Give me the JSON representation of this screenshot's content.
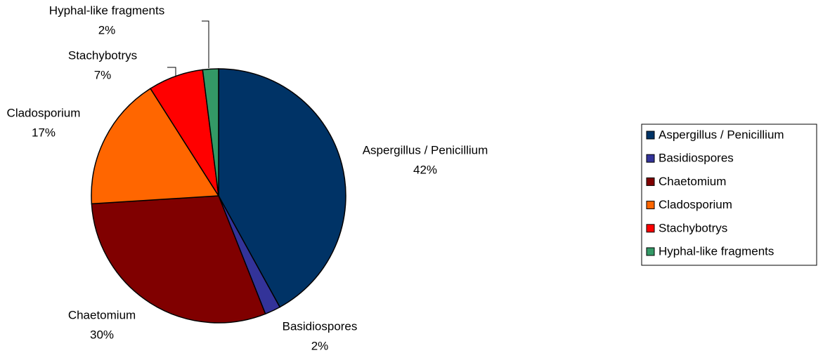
{
  "chart_data": {
    "type": "pie",
    "categories": [
      "Aspergillus / Penicillium",
      "Basidiospores",
      "Chaetomium",
      "Cladosporium",
      "Stachybotrys",
      "Hyphal-like fragments"
    ],
    "values": [
      42,
      2,
      30,
      17,
      7,
      2
    ],
    "value_labels": [
      "42%",
      "2%",
      "30%",
      "17%",
      "7%",
      "2%"
    ],
    "colors": [
      "#003366",
      "#333399",
      "#800000",
      "#ff6600",
      "#ff0000",
      "#339966"
    ],
    "legend": "right"
  }
}
